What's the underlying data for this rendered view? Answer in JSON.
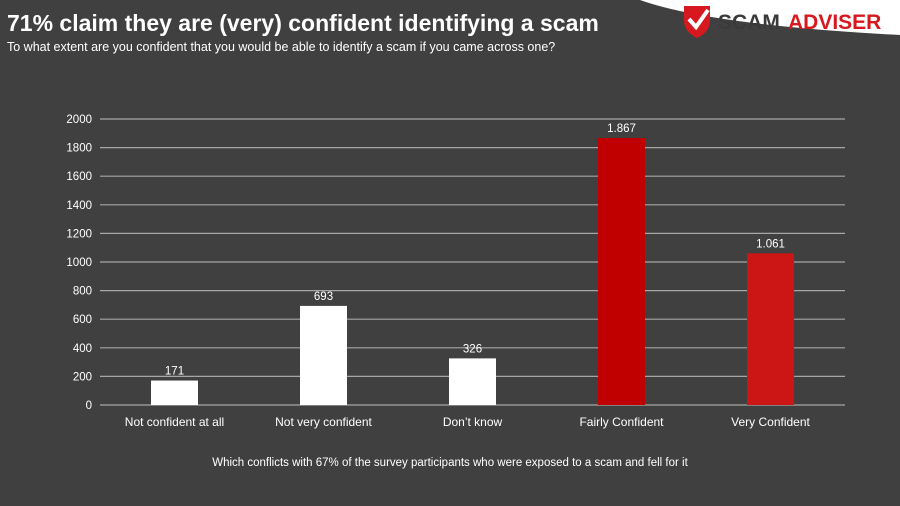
{
  "title": "71% claim they are (very) confident identifying a scam",
  "subtitle": "To what extent are you confident that you would be able to identify a scam if you came across one?",
  "footnote": "Which conflicts with 67% of the survey participants who were exposed to a scam and fell for it",
  "logo": {
    "text_dark": "SCAM",
    "text_red": "ADVISER",
    "icon": "shield-check-icon"
  },
  "colors": {
    "background": "#404040",
    "white_bar": "#ffffff",
    "fairly": "#c00000",
    "very": "#cc1616",
    "brand_red": "#d7191f"
  },
  "chart_data": {
    "type": "bar",
    "categories": [
      "Not confident at all",
      "Not very confident",
      "Don’t know",
      "Fairly Confident",
      "Very Confident"
    ],
    "values": [
      171,
      693,
      326,
      1867,
      1061
    ],
    "data_labels": [
      "171",
      "693",
      "326",
      "1.867",
      "1.061"
    ],
    "bar_colors": [
      "#ffffff",
      "#ffffff",
      "#ffffff",
      "#c00000",
      "#cc1616"
    ],
    "yticks": [
      "0",
      "200",
      "400",
      "600",
      "800",
      "1000",
      "1200",
      "1400",
      "1600",
      "1800",
      "2000"
    ],
    "ylim": [
      0,
      2000
    ],
    "grid": true,
    "legend": "none",
    "xlabel": "",
    "ylabel": ""
  }
}
